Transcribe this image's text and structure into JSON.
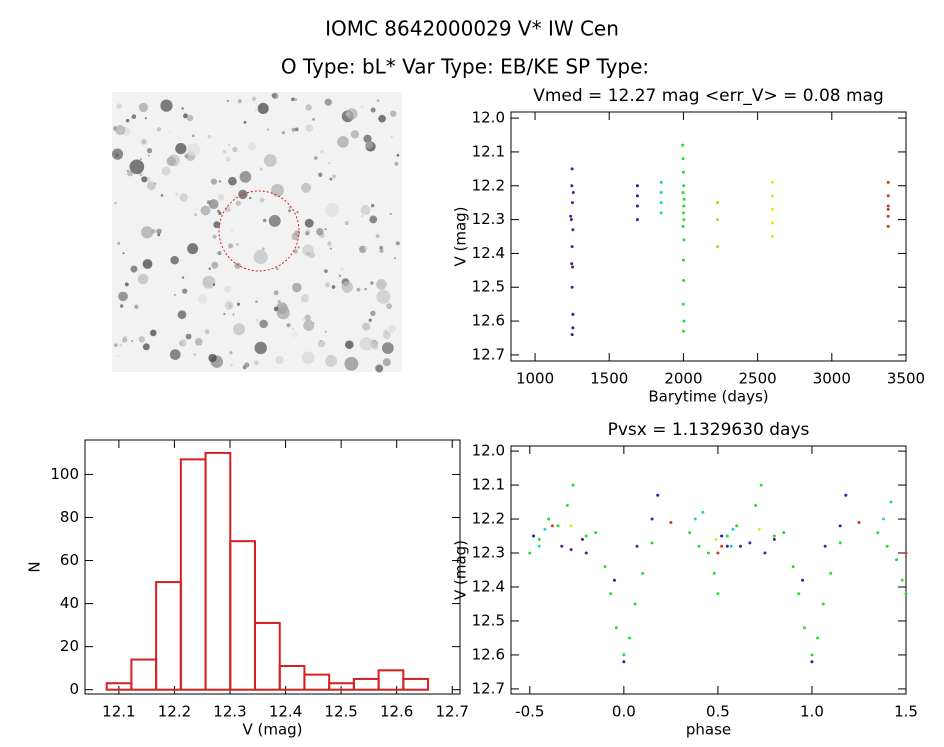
{
  "header": {
    "title": "IOMC 8642000029    V* IW Cen",
    "subtitle": "O Type: bL*  Var Type: EB/KE  SP Type:"
  },
  "chart_data": [
    {
      "type": "scatter",
      "title": "Vmed = 12.27 mag <err_V> = 0.08 mag",
      "xlabel": "Barytime (days)",
      "ylabel": "V (mag)",
      "xlim": [
        838,
        3500
      ],
      "xticks": [
        1000,
        1500,
        2000,
        2500,
        3000,
        3500
      ],
      "ylim": [
        12.718,
        11.982
      ],
      "yticks": [
        {
          "value": 12.0,
          "label": "12.0"
        },
        12.1,
        12.2,
        12.3,
        12.4,
        12.5,
        12.6,
        12.7
      ],
      "series": [
        {
          "color": "#5a1a8c",
          "x": [
            1240,
            1245,
            1248,
            1250,
            1252,
            1255,
            1258,
            1250,
            1250,
            1253,
            1247
          ],
          "values": [
            12.29,
            12.3,
            12.2,
            12.15,
            12.25,
            12.33,
            12.22,
            12.38,
            12.5,
            12.44,
            12.43
          ]
        },
        {
          "color": "#2020b0",
          "x": [
            1690,
            1690,
            1690,
            1690,
            1255,
            1255,
            1250
          ],
          "values": [
            12.2,
            12.23,
            12.26,
            12.3,
            12.62,
            12.58,
            12.64
          ]
        },
        {
          "color": "#1ad2d2",
          "x": [
            1850,
            1850,
            1850,
            1850
          ],
          "values": [
            12.19,
            12.22,
            12.25,
            12.28
          ]
        },
        {
          "color": "#22dd33",
          "x": [
            1995,
            1998,
            2000,
            2002,
            2005,
            2000,
            1998,
            2003,
            2000,
            2001,
            1999,
            2004,
            2000,
            2002,
            1997,
            2003
          ],
          "values": [
            12.08,
            12.12,
            12.16,
            12.2,
            12.24,
            12.28,
            12.32,
            12.36,
            12.42,
            12.48,
            12.55,
            12.6,
            12.63,
            12.26,
            12.22,
            12.3
          ]
        },
        {
          "color": "#99dd22",
          "x": [
            2230,
            2230,
            2230
          ],
          "values": [
            12.25,
            12.3,
            12.38
          ]
        },
        {
          "color": "#f0e020",
          "x": [
            2600,
            2600,
            2600,
            2600,
            2600
          ],
          "values": [
            12.19,
            12.23,
            12.27,
            12.31,
            12.35
          ]
        },
        {
          "color": "#d03a10",
          "x": [
            3380,
            3380,
            3380,
            3380,
            3380,
            3380
          ],
          "values": [
            12.19,
            12.23,
            12.26,
            12.29,
            12.32,
            12.27
          ]
        }
      ]
    },
    {
      "type": "histogram",
      "xlabel": "V (mag)",
      "ylabel": "N",
      "color": "#d42020",
      "bins": [
        12.078,
        12.1225,
        12.167,
        12.2115,
        12.256,
        12.3005,
        12.345,
        12.3895,
        12.434,
        12.4785,
        12.523,
        12.5675,
        12.612,
        12.6565
      ],
      "values": [
        3,
        14,
        50,
        107,
        110,
        69,
        31,
        11,
        7,
        3,
        5,
        9,
        5
      ],
      "xlim": [
        12.039,
        12.714
      ],
      "xticks": [
        12.1,
        12.2,
        12.3,
        12.4,
        12.5,
        12.6,
        12.7
      ],
      "ylim": [
        -2,
        116
      ],
      "yticks": [
        0,
        20,
        40,
        60,
        80,
        100
      ]
    },
    {
      "type": "scatter",
      "title": "Pvsx = 1.1329630 days",
      "xlabel": "phase",
      "ylabel": "V (mag)",
      "xlim": [
        -0.6,
        1.5
      ],
      "xticks": [
        -0.5,
        {
          "value": 0.0,
          "label": "0.0"
        },
        0.5,
        {
          "value": 1.0,
          "label": "1.0"
        },
        1.5
      ],
      "ylim": [
        12.715,
        11.985
      ],
      "yticks": [
        {
          "value": 12.0,
          "label": "12.0"
        },
        12.1,
        12.2,
        12.3,
        12.4,
        12.5,
        12.6,
        12.7
      ],
      "series": [
        {
          "color": "#22dd33",
          "x": [
            -0.5,
            -0.45,
            -0.4,
            -0.35,
            -0.3,
            -0.27,
            -0.2,
            -0.15,
            -0.1,
            -0.07,
            -0.04,
            0.0,
            0.03,
            0.06,
            0.1,
            0.15,
            0.35,
            0.4,
            0.45,
            0.48,
            0.5,
            0.55,
            0.6,
            0.7,
            0.73,
            0.8,
            0.85,
            0.9,
            0.93,
            0.96,
            1.0,
            1.03,
            1.06,
            1.1,
            1.15,
            1.35,
            1.4,
            1.45,
            1.48,
            1.5
          ],
          "values": [
            12.3,
            12.26,
            12.2,
            12.22,
            12.16,
            12.1,
            12.25,
            12.24,
            12.34,
            12.42,
            12.52,
            12.6,
            12.55,
            12.45,
            12.36,
            12.27,
            12.24,
            12.28,
            12.3,
            12.36,
            12.42,
            12.25,
            12.22,
            12.16,
            12.1,
            12.25,
            12.24,
            12.34,
            12.42,
            12.52,
            12.6,
            12.55,
            12.45,
            12.36,
            12.27,
            12.24,
            12.28,
            12.32,
            12.38,
            12.42
          ]
        },
        {
          "color": "#5a1a8c",
          "x": [
            -0.33,
            -0.28,
            -0.22,
            -0.2,
            0.07,
            0.15,
            0.55,
            0.62,
            0.67,
            0.75,
            0.8,
            1.07,
            1.15
          ],
          "values": [
            12.28,
            12.29,
            12.26,
            12.3,
            12.28,
            12.2,
            12.28,
            12.28,
            12.27,
            12.3,
            12.26,
            12.28,
            12.22
          ]
        },
        {
          "color": "#2020b0",
          "x": [
            -0.48,
            -0.05,
            0.0,
            0.18,
            0.52,
            0.95,
            1.0,
            1.18
          ],
          "values": [
            12.25,
            12.38,
            12.62,
            12.13,
            12.25,
            12.38,
            12.62,
            12.13
          ]
        },
        {
          "color": "#1ad2d2",
          "x": [
            -0.45,
            -0.42,
            0.38,
            0.42,
            0.57,
            0.58,
            1.38,
            1.42
          ],
          "values": [
            12.28,
            12.23,
            12.2,
            12.18,
            12.28,
            12.23,
            12.2,
            12.15
          ]
        },
        {
          "color": "#d03a10",
          "x": [
            -0.38,
            0.25,
            0.5,
            0.52,
            1.25,
            1.5
          ],
          "values": [
            12.22,
            12.21,
            12.3,
            12.28,
            12.21,
            12.3
          ]
        },
        {
          "color": "#f0e020",
          "x": [
            -0.28,
            0.49,
            0.72
          ],
          "values": [
            12.22,
            12.26,
            12.23
          ]
        }
      ]
    }
  ]
}
